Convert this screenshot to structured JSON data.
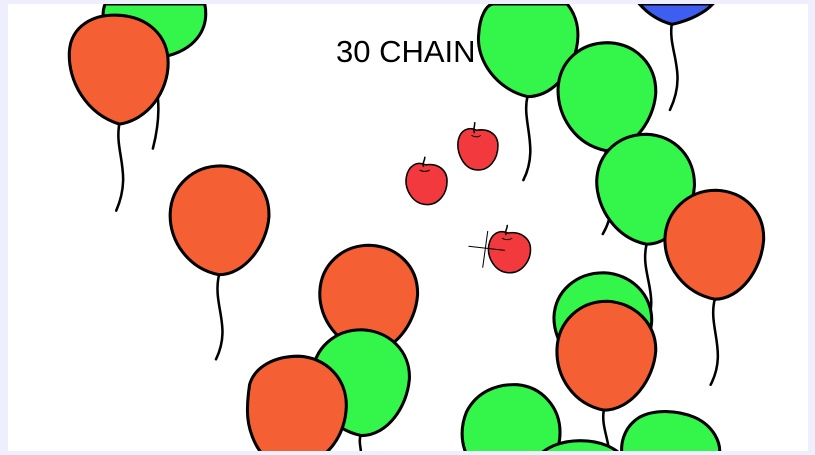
{
  "hud": {
    "chain_text": "30 CHAIN"
  },
  "colors": {
    "background": "#eeeefc",
    "play_area": "#ffffff",
    "balloon_orange": "#f46033",
    "balloon_green": "#33f54a",
    "balloon_blue": "#3d5ef0",
    "apple_red": "#f2393d",
    "outline": "#000000"
  },
  "balloons": [
    {
      "color": "green"
    },
    {
      "color": "orange"
    },
    {
      "color": "blue"
    },
    {
      "color": "green"
    },
    {
      "color": "green"
    },
    {
      "color": "green"
    },
    {
      "color": "orange"
    },
    {
      "color": "orange"
    },
    {
      "color": "orange"
    },
    {
      "color": "green"
    },
    {
      "color": "green"
    },
    {
      "color": "orange"
    },
    {
      "color": "orange"
    },
    {
      "color": "green"
    },
    {
      "color": "green"
    },
    {
      "color": "green"
    }
  ],
  "apples": [
    {
      "label": "apple"
    },
    {
      "label": "apple"
    },
    {
      "label": "apple"
    }
  ],
  "crosshair": {
    "visible": true
  }
}
